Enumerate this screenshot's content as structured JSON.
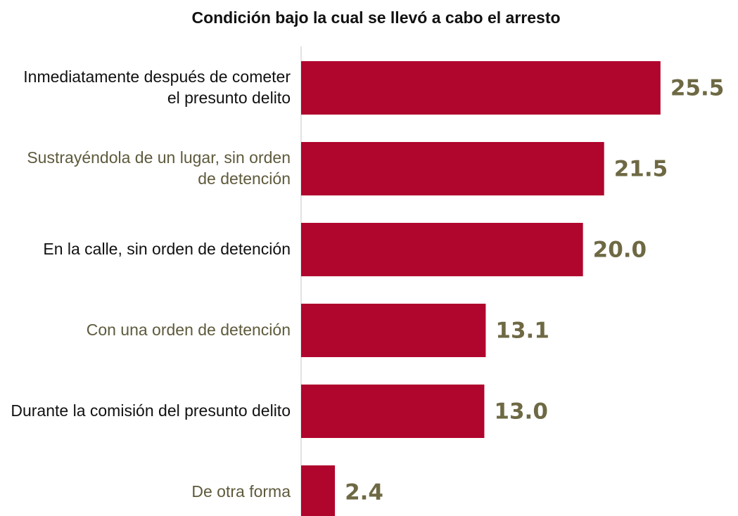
{
  "chart_data": {
    "type": "barh",
    "title": "Condición bajo la cual se llevó a cabo el arresto",
    "categories": [
      "Inmediatamente después de cometer el presunto delito",
      "Sustrayéndola de un lugar, sin orden de detención",
      "En la calle, sin orden de detención",
      "Con una orden de detención",
      "Durante la comisión del presunto delito",
      "De otra forma"
    ],
    "values": [
      25.5,
      21.5,
      20.0,
      13.1,
      13.0,
      2.4
    ],
    "value_labels": [
      "25.5",
      "21.5",
      "20.0",
      "13.1",
      "13.0",
      "2.4"
    ],
    "color": "#b0052d",
    "value_label_color": "#6e6944",
    "category_colors": [
      "#111111",
      "#5e5a3c",
      "#111111",
      "#5e5a3c",
      "#111111",
      "#5e5a3c"
    ],
    "xlim": [
      0,
      31
    ]
  }
}
